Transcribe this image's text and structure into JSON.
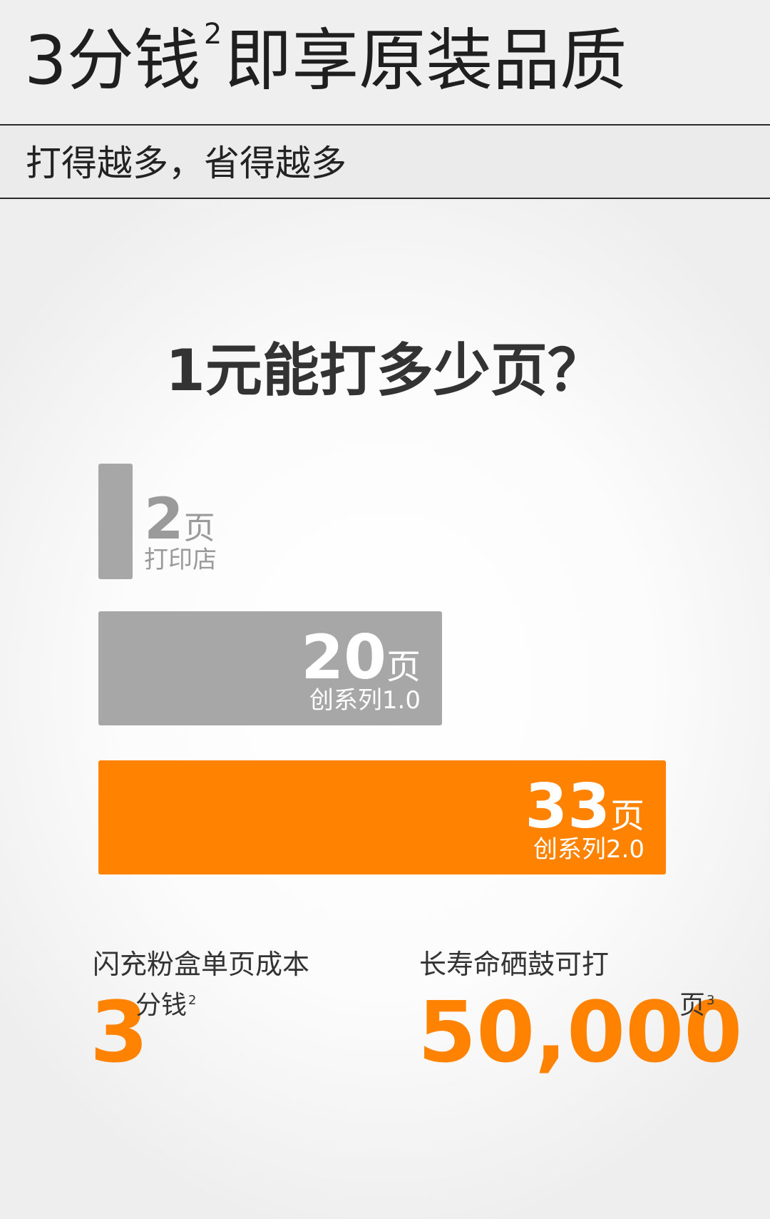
{
  "header": {
    "title_before": "3分钱",
    "title_sup": "2",
    "title_after": "即享原装品质",
    "subtitle": "打得越多，省得越多"
  },
  "question": "1元能打多少页？",
  "chart_data": {
    "type": "bar",
    "orientation": "horizontal",
    "title": "1元能打多少页？",
    "unit": "页",
    "categories": [
      "打印店",
      "创系列1.0",
      "创系列2.0"
    ],
    "values": [
      2,
      20,
      33
    ],
    "bar_colors": [
      "#a7a7a7",
      "#a7a7a7",
      "#ff8200"
    ],
    "value_labels": [
      "2",
      "20",
      "33"
    ],
    "xlim": [
      0,
      33
    ]
  },
  "stats": [
    {
      "caption": "闪充粉盒单页成本",
      "value": "3",
      "unit": "分钱",
      "note": "2"
    },
    {
      "caption": "长寿命硒鼓可打",
      "value": "50,000",
      "unit": "页",
      "note": "3"
    }
  ],
  "colors": {
    "accent": "#ff8200",
    "gray_bar": "#a7a7a7",
    "gray_text": "#9a9a9a",
    "title_text": "#1f1f1f"
  }
}
